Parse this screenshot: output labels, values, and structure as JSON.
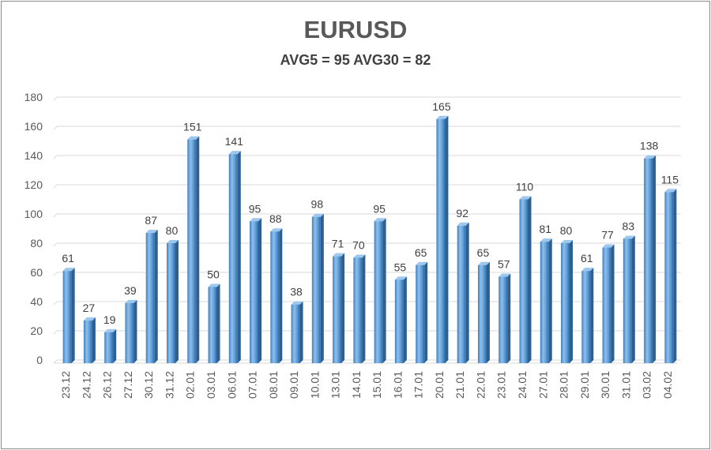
{
  "chart_data": {
    "type": "bar",
    "title": "EURUSD",
    "subtitle": "AVG5 = 95 AVG30 = 82",
    "xlabel": "",
    "ylabel": "",
    "ylim": [
      0,
      180
    ],
    "yticks": [
      0,
      20,
      40,
      60,
      80,
      100,
      120,
      140,
      160,
      180
    ],
    "grid": true,
    "legend": "none",
    "bar_color": "#5b9bd5",
    "categories": [
      "23.12",
      "24.12",
      "26.12",
      "27.12",
      "30.12",
      "31.12",
      "02.01",
      "03.01",
      "06.01",
      "07.01",
      "08.01",
      "09.01",
      "10.01",
      "13.01",
      "14.01",
      "15.01",
      "16.01",
      "17.01",
      "20.01",
      "21.01",
      "22.01",
      "23.01",
      "24.01",
      "27.01",
      "28.01",
      "29.01",
      "30.01",
      "31.01",
      "03.02",
      "04.02"
    ],
    "values": [
      61,
      27,
      19,
      39,
      87,
      80,
      151,
      50,
      141,
      95,
      88,
      38,
      98,
      71,
      70,
      95,
      55,
      65,
      165,
      92,
      65,
      57,
      110,
      81,
      80,
      61,
      77,
      83,
      138,
      115
    ]
  }
}
